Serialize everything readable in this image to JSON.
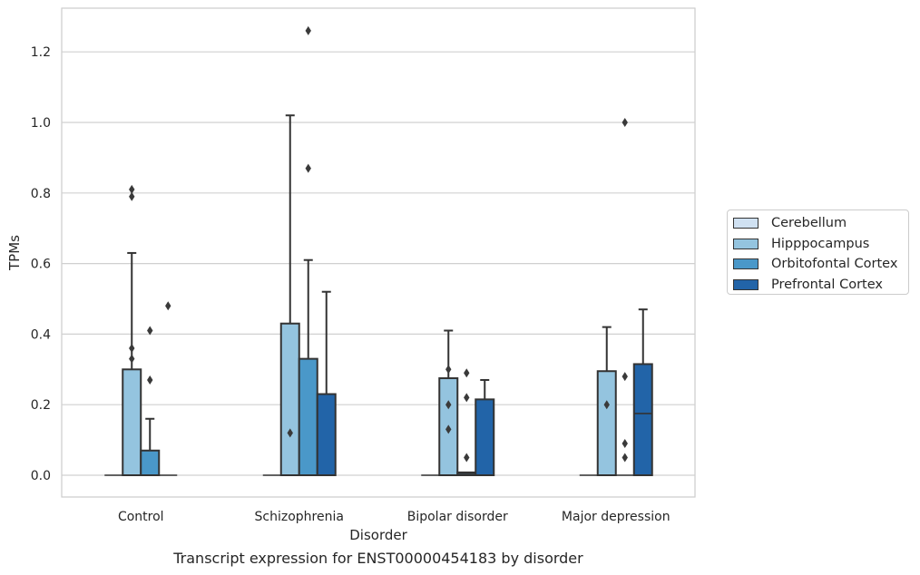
{
  "chart_data": {
    "type": "boxplot",
    "caption": "Transcript expression for ENST00000454183 by disorder",
    "xlabel": "Disorder",
    "ylabel": "TPMs",
    "ylim": [
      -0.06,
      1.33
    ],
    "yticks": [
      "0.0",
      "0.2",
      "0.4",
      "0.6",
      "0.8",
      "1.0",
      "1.2"
    ],
    "categories": [
      "Control",
      "Schizophrenia",
      "Bipolar disorder",
      "Major depression"
    ],
    "legend_position": "right",
    "grid": true,
    "series": [
      {
        "name": "Cerebellum",
        "color": "#d0e1f2",
        "boxes": [
          {
            "q1": 0,
            "median": 0,
            "q3": 0,
            "whisker_low": 0,
            "whisker_high": 0,
            "outliers": []
          },
          {
            "q1": 0,
            "median": 0,
            "q3": 0,
            "whisker_low": 0,
            "whisker_high": 0,
            "outliers": []
          },
          {
            "q1": 0,
            "median": 0,
            "q3": 0,
            "whisker_low": 0,
            "whisker_high": 0,
            "outliers": []
          },
          {
            "q1": 0,
            "median": 0,
            "q3": 0,
            "whisker_low": 0,
            "whisker_high": 0,
            "outliers": []
          }
        ]
      },
      {
        "name": "Hipppocampus",
        "color": "#94c4df",
        "boxes": [
          {
            "q1": 0,
            "median": 0,
            "q3": 0.3,
            "whisker_low": 0,
            "whisker_high": 0.63,
            "outliers": [
              0.81,
              0.79,
              0.36,
              0.33
            ]
          },
          {
            "q1": 0,
            "median": 0,
            "q3": 0.43,
            "whisker_low": 0,
            "whisker_high": 1.02,
            "outliers": [
              0.12
            ]
          },
          {
            "q1": 0,
            "median": 0,
            "q3": 0.275,
            "whisker_low": 0,
            "whisker_high": 0.41,
            "outliers": [
              0.3,
              0.2,
              0.13
            ]
          },
          {
            "q1": 0,
            "median": 0,
            "q3": 0.295,
            "whisker_low": 0,
            "whisker_high": 0.42,
            "outliers": [
              0.2
            ]
          }
        ]
      },
      {
        "name": "Orbitofontal Cortex",
        "color": "#4a98c9",
        "boxes": [
          {
            "q1": 0,
            "median": 0,
            "q3": 0.07,
            "whisker_low": 0,
            "whisker_high": 0.16,
            "outliers": [
              0.41,
              0.27
            ]
          },
          {
            "q1": 0,
            "median": 0,
            "q3": 0.33,
            "whisker_low": 0,
            "whisker_high": 0.61,
            "outliers": [
              1.26,
              0.87
            ]
          },
          {
            "q1": 0,
            "median": 0.005,
            "q3": 0.008,
            "whisker_low": 0,
            "whisker_high": 0.008,
            "outliers": [
              0.29,
              0.22,
              0.05
            ]
          },
          {
            "q1": 0,
            "median": 0,
            "q3": 0,
            "whisker_low": 0,
            "whisker_high": 0,
            "outliers": [
              1.0,
              0.28,
              0.09,
              0.05
            ]
          }
        ]
      },
      {
        "name": "Prefrontal Cortex",
        "color": "#2264a8",
        "boxes": [
          {
            "q1": 0,
            "median": 0,
            "q3": 0,
            "whisker_low": 0,
            "whisker_high": 0,
            "outliers": [
              0.48
            ]
          },
          {
            "q1": 0,
            "median": 0,
            "q3": 0.23,
            "whisker_low": 0,
            "whisker_high": 0.52,
            "outliers": []
          },
          {
            "q1": 0,
            "median": 0,
            "q3": 0.215,
            "whisker_low": 0,
            "whisker_high": 0.27,
            "outliers": []
          },
          {
            "q1": 0,
            "median": 0.175,
            "q3": 0.315,
            "whisker_low": 0,
            "whisker_high": 0.47,
            "outliers": []
          }
        ]
      }
    ]
  }
}
